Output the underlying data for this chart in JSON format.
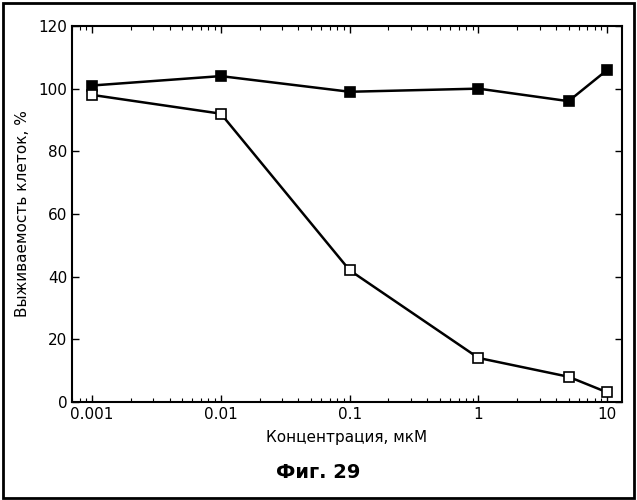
{
  "series1_x": [
    0.001,
    0.01,
    0.1,
    1,
    5,
    10
  ],
  "series1_y": [
    101,
    104,
    99,
    100,
    96,
    106
  ],
  "series2_x": [
    0.001,
    0.01,
    0.1,
    1,
    5,
    10
  ],
  "series2_y": [
    98,
    92,
    42,
    14,
    8,
    3
  ],
  "xlabel": "Концентрация, мкМ",
  "ylabel": "Выживаемость клеток, %",
  "caption": "Фиг. 29",
  "ylim": [
    0,
    120
  ],
  "yticks": [
    0,
    20,
    40,
    60,
    80,
    100,
    120
  ],
  "xtick_labels": [
    "0.001",
    "0.01",
    "0.1",
    "1",
    "10"
  ],
  "xtick_vals": [
    0.001,
    0.01,
    0.1,
    1,
    10
  ],
  "fig_bg_color": "#ffffff",
  "plot_bg_color": "#ffffff",
  "line_color": "#000000",
  "fill_marker_color": "#000000",
  "open_marker_facecolor": "#ffffff",
  "marker_size": 7,
  "line_width": 1.8,
  "border_color": "#000000"
}
